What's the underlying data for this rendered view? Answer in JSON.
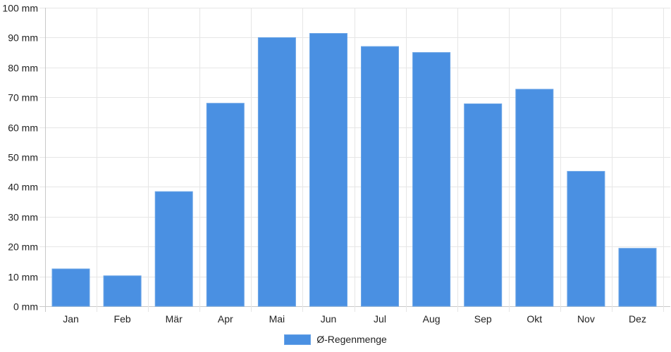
{
  "chart_data": {
    "type": "bar",
    "categories": [
      "Jan",
      "Feb",
      "Mär",
      "Apr",
      "Mai",
      "Jun",
      "Jul",
      "Aug",
      "Sep",
      "Okt",
      "Nov",
      "Dez"
    ],
    "series": [
      {
        "name": "Ø-Regenmenge",
        "values": [
          12.5,
          10.2,
          38.4,
          68,
          90,
          91.4,
          87,
          85,
          67.8,
          72.7,
          45.2,
          19.4
        ],
        "color": "#4a90e2"
      }
    ],
    "y_ticks": [
      "0 mm",
      "10 mm",
      "20 mm",
      "30 mm",
      "40 mm",
      "50 mm",
      "60 mm",
      "70 mm",
      "80 mm",
      "90 mm",
      "100 mm"
    ],
    "ylim": [
      0,
      100
    ],
    "grid": true,
    "legend_position": "bottom"
  }
}
